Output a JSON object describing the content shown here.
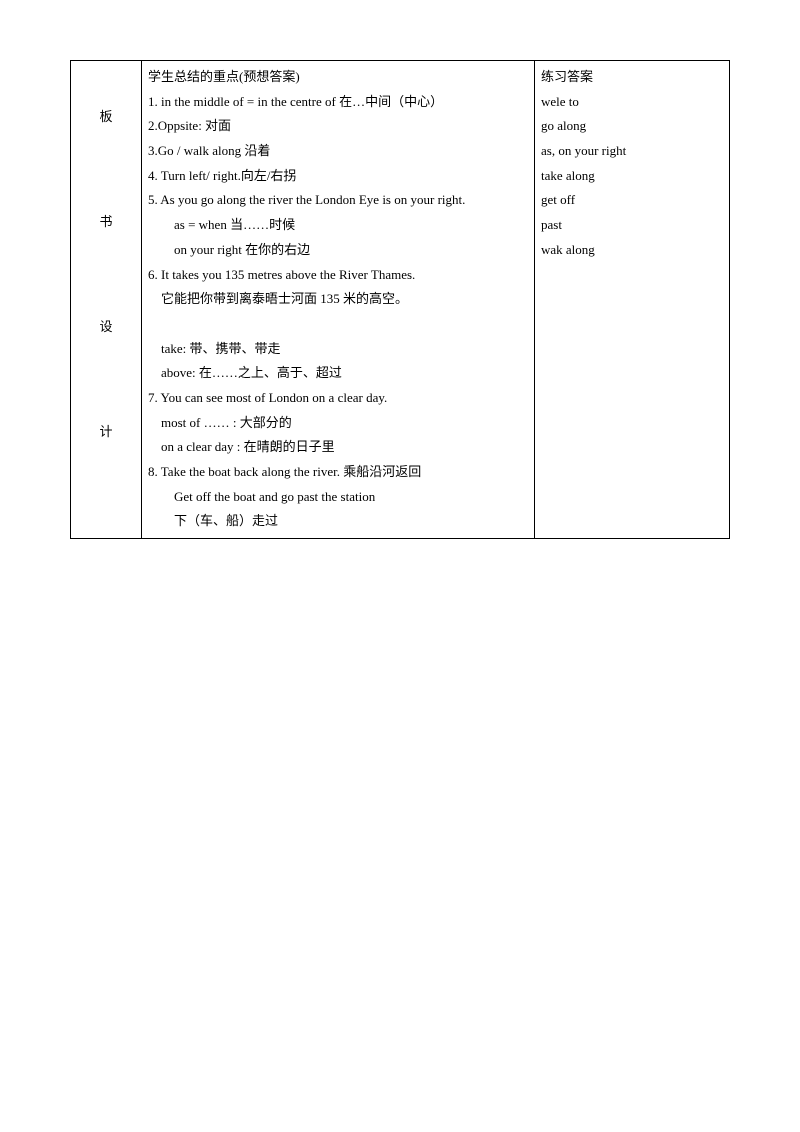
{
  "label": {
    "c1": "板",
    "c2": "书",
    "c3": "设",
    "c4": "计"
  },
  "content": {
    "heading": "学生总结的重点(预想答案)",
    "l1": "1. in the middle of = in the centre of 在…中间（中心）",
    "l2": "2.Oppsite: 对面",
    "l3": "3.Go / walk along  沿着",
    "l4": "4. Turn left/ right.向左/右拐",
    "l5": "5. As you go along the river the London Eye is on your right.",
    "l5a": "as = when  当……时候",
    "l5b": "on your right 在你的右边",
    "l6": "6. It takes you 135 metres above the River Thames.",
    "l6a": "它能把你带到离泰晤士河面 135 米的高空。",
    "l6b": "take: 带、携带、带走",
    "l6c": "above: 在……之上、高于、超过",
    "l7": "7. You can see most of London on a clear day.",
    "l7a": "most of …… : 大部分的",
    "l7b": "on a clear day : 在晴朗的日子里",
    "l8": "8. Take the boat back along the river. 乘船沿河返回",
    "l8a": "Get off the boat and go past the station",
    "l8b": "下（车、船）走过"
  },
  "answers": {
    "heading": "练习答案",
    "a1": "wele to",
    "a2": "go along",
    "a3": "as, on your right",
    "a4": "take along",
    "a5": "get off",
    "a6": "past",
    "a7": "wak along"
  }
}
